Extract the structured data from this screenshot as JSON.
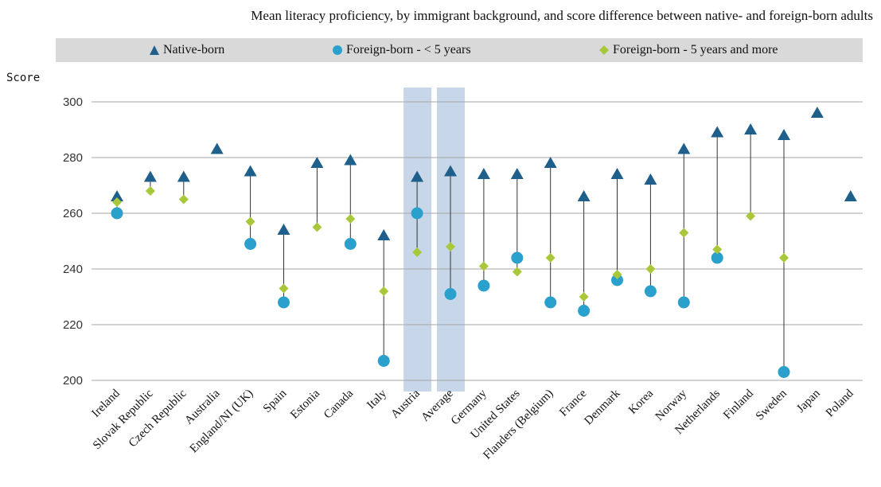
{
  "chart_data": {
    "type": "scatter",
    "title": "Mean literacy proficiency, by immigrant background, and score difference between native- and foreign-born adults",
    "ylabel": "Score",
    "xlabel": "",
    "ylim": [
      200,
      300
    ],
    "yticks": [
      200,
      220,
      240,
      260,
      280,
      300
    ],
    "grid": true,
    "legend_position": "top",
    "highlighted_categories": [
      "Austria",
      "Average"
    ],
    "categories": [
      "Ireland",
      "Slovak Republic",
      "Czech Republic",
      "Australia",
      "England/NI (UK)",
      "Spain",
      "Estonia",
      "Canada",
      "Italy",
      "Austria",
      "Average",
      "Germany",
      "United States",
      "Flanders (Belgium)",
      "France",
      "Denmark",
      "Korea",
      "Norway",
      "Netherlands",
      "Finland",
      "Sweden",
      "Japan",
      "Poland"
    ],
    "series": [
      {
        "name": "Native-born",
        "marker": "triangle",
        "color": "#1f5f8b",
        "values": [
          266,
          273,
          273,
          283,
          275,
          254,
          278,
          279,
          252,
          273,
          275,
          274,
          274,
          278,
          266,
          274,
          272,
          283,
          289,
          290,
          288,
          296,
          266
        ]
      },
      {
        "name": "Foreign-born - < 5 years",
        "marker": "circle",
        "color": "#2aa0cc",
        "values": [
          260,
          null,
          null,
          null,
          249,
          228,
          null,
          249,
          207,
          260,
          231,
          234,
          244,
          228,
          225,
          236,
          232,
          228,
          244,
          null,
          203,
          null,
          null
        ]
      },
      {
        "name": "Foreign-born - 5 years and more",
        "marker": "diamond",
        "color": "#a8c83a",
        "values": [
          264,
          268,
          265,
          null,
          257,
          233,
          255,
          258,
          232,
          246,
          248,
          241,
          239,
          244,
          230,
          238,
          240,
          253,
          247,
          259,
          244,
          null,
          null
        ]
      }
    ]
  }
}
